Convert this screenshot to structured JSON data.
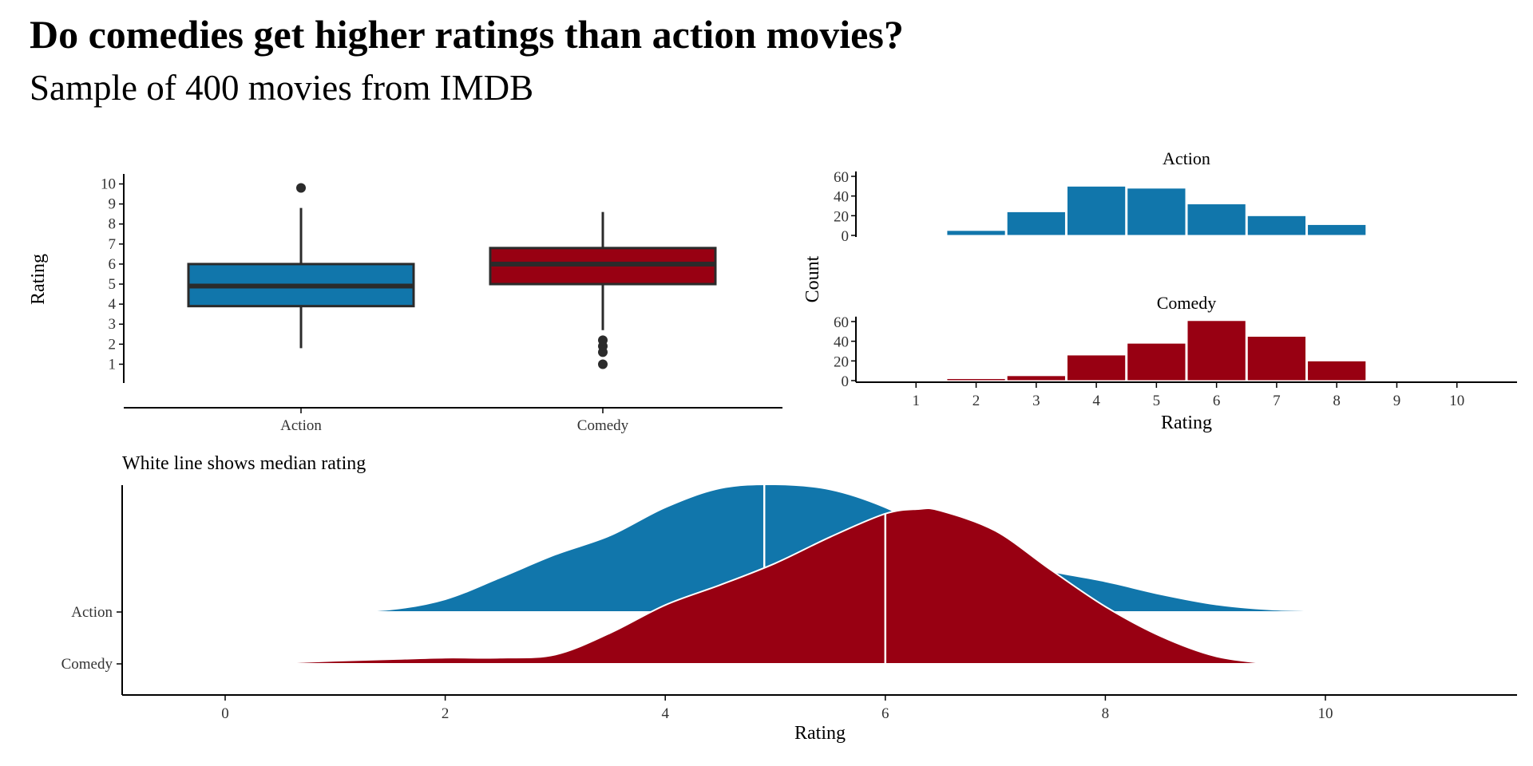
{
  "title": "Do comedies get higher ratings than action movies?",
  "subtitle": "Sample of 400 movies from IMDB",
  "colors": {
    "Action": "#1176ab",
    "Comedy": "#980012",
    "median_line_box": "#2b2b2b",
    "median_line_ridge": "#ffffff"
  },
  "chart_data": [
    {
      "type": "boxplot",
      "categories": [
        "Action",
        "Comedy"
      ],
      "ylabel": "Rating",
      "xlabel": "",
      "yticks": [
        1,
        2,
        3,
        4,
        5,
        6,
        7,
        8,
        9,
        10
      ],
      "ylim": [
        0.5,
        10.3
      ],
      "boxes": [
        {
          "name": "Action",
          "whisker_low": 1.8,
          "q1": 3.9,
          "median": 4.9,
          "q3": 6.0,
          "whisker_high": 8.8,
          "outliers": [
            9.8
          ]
        },
        {
          "name": "Comedy",
          "whisker_low": 2.7,
          "q1": 5.0,
          "median": 6.0,
          "q3": 6.8,
          "whisker_high": 8.6,
          "outliers": [
            1.0,
            1.6,
            1.9,
            2.2
          ]
        }
      ]
    },
    {
      "type": "bar",
      "subtype": "histogram-facets",
      "xlabel": "Rating",
      "ylabel": "Count",
      "xticks": [
        1,
        2,
        3,
        4,
        5,
        6,
        7,
        8,
        9,
        10
      ],
      "yticks": [
        0,
        20,
        40,
        60
      ],
      "xlim": [
        0,
        11
      ],
      "ylim": [
        0,
        65
      ],
      "bins": [
        2,
        3,
        4,
        5,
        6,
        7,
        8
      ],
      "series": [
        {
          "name": "Action",
          "values": [
            5,
            24,
            50,
            48,
            32,
            20,
            11
          ]
        },
        {
          "name": "Comedy",
          "values": [
            2,
            5,
            26,
            38,
            61,
            45,
            20
          ]
        }
      ]
    },
    {
      "type": "area",
      "subtype": "ridgeline-density",
      "annotation": "White line shows median rating",
      "xlabel": "Rating",
      "xticks": [
        0,
        2,
        4,
        6,
        8,
        10
      ],
      "xlim": [
        -1.9,
        11.6
      ],
      "categories": [
        "Action",
        "Comedy"
      ],
      "series": [
        {
          "name": "Action",
          "median": 4.9,
          "x": [
            0.9,
            1.5,
            2,
            2.5,
            3,
            3.5,
            4,
            4.5,
            5,
            5.5,
            6,
            6.5,
            7,
            7.5,
            8,
            8.5,
            9,
            9.5,
            10,
            10.7
          ],
          "density": [
            0,
            0.02,
            0.1,
            0.27,
            0.45,
            0.6,
            0.82,
            0.97,
            1.0,
            0.96,
            0.82,
            0.6,
            0.42,
            0.32,
            0.24,
            0.14,
            0.06,
            0.02,
            0.01,
            0
          ]
        },
        {
          "name": "Comedy",
          "median": 6.0,
          "x": [
            0.3,
            1,
            1.5,
            2,
            2.5,
            3,
            3.5,
            4,
            4.5,
            5,
            5.5,
            6,
            6.3,
            6.5,
            7,
            7.5,
            8,
            8.5,
            9,
            9.5
          ],
          "density": [
            0,
            0.02,
            0.03,
            0.04,
            0.04,
            0.06,
            0.2,
            0.38,
            0.51,
            0.65,
            0.82,
            0.97,
            1.0,
            0.99,
            0.86,
            0.61,
            0.37,
            0.18,
            0.05,
            0
          ]
        }
      ]
    }
  ]
}
